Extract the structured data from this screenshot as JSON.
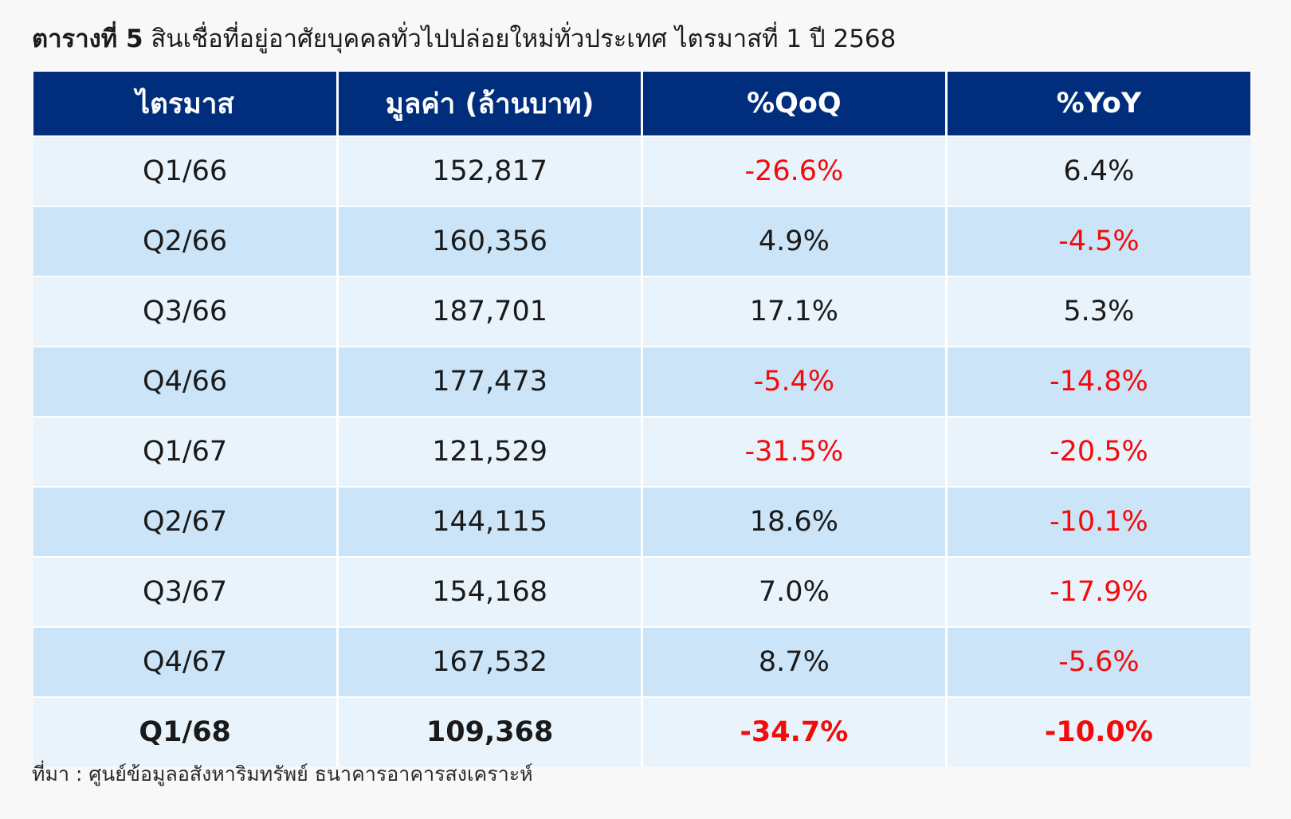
{
  "title": {
    "bold": "ตารางที่ 5",
    "rest": "สินเชื่อที่อยู่อาศัยบุคคลทั่วไปปล่อยใหม่ทั่วประเทศ ไตรมาสที่ 1 ปี 2568"
  },
  "table": {
    "headers": [
      "ไตรมาส",
      "มูลค่า (ล้านบาท)",
      "%QoQ",
      "%YoY"
    ],
    "rows": [
      {
        "quarter": "Q1/66",
        "value": "152,817",
        "qoq": "-26.6%",
        "yoy": "6.4%"
      },
      {
        "quarter": "Q2/66",
        "value": "160,356",
        "qoq": "4.9%",
        "yoy": "-4.5%"
      },
      {
        "quarter": "Q3/66",
        "value": "187,701",
        "qoq": "17.1%",
        "yoy": "5.3%"
      },
      {
        "quarter": "Q4/66",
        "value": "177,473",
        "qoq": "-5.4%",
        "yoy": "-14.8%"
      },
      {
        "quarter": "Q1/67",
        "value": "121,529",
        "qoq": "-31.5%",
        "yoy": "-20.5%"
      },
      {
        "quarter": "Q2/67",
        "value": "144,115",
        "qoq": "18.6%",
        "yoy": "-10.1%"
      },
      {
        "quarter": "Q3/67",
        "value": "154,168",
        "qoq": "7.0%",
        "yoy": "-17.9%"
      },
      {
        "quarter": "Q4/67",
        "value": "167,532",
        "qoq": "8.7%",
        "yoy": "-5.6%"
      },
      {
        "quarter": "Q1/68",
        "value": "109,368",
        "qoq": "-34.7%",
        "yoy": "-10.0%"
      }
    ]
  },
  "source": "ที่มา : ศูนย์ข้อมูลอสังหาริมทรัพย์ ธนาคารอาคารสงเคราะห์",
  "colors": {
    "header_bg": "#012e7c",
    "row_light": "#e8f3fb",
    "row_dark": "#cbe4f7",
    "negative": "#f50a0a"
  }
}
